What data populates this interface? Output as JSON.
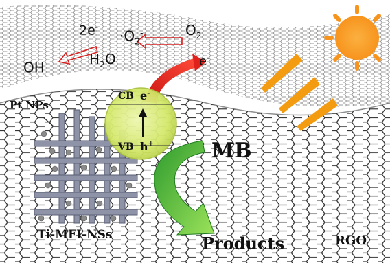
{
  "labels": {
    "electrons_2": "2e",
    "superoxide": "·O",
    "oxygen": "O",
    "hydroxyl": "OH",
    "water_h": "H",
    "water_o": "O",
    "electron": "e",
    "conduction_band": "CB",
    "cb_electron": "e",
    "valence_band": "VB",
    "hole": "h",
    "platinum": "Pt NPs",
    "methylene_blue": "MB",
    "catalyst": "Ti-MFI-NSs",
    "products": "Products",
    "graphene": "RGO"
  },
  "symbols": {
    "minus": "-",
    "plus": "+",
    "two": "2"
  },
  "colors": {
    "sun": "#f7941d",
    "rays": "#f39c12",
    "sphere": "#d4e86a",
    "red_arrow": "#e0201a",
    "green_arrow": "#3aa83a",
    "framework": "#8e93a8",
    "pt_particle": "#8a8a8a",
    "graphene": "#3c3c3c"
  },
  "icons": [
    "sun-icon",
    "light-ray-icon",
    "red-electron-arrow-icon",
    "green-arrow-icon",
    "framework-icon"
  ]
}
